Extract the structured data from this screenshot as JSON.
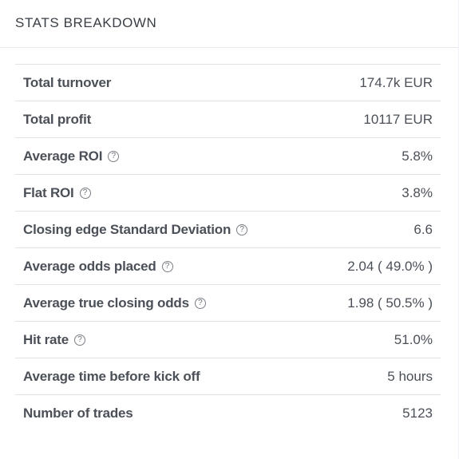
{
  "card": {
    "title": "STATS BREAKDOWN"
  },
  "help_icon_glyph": "?",
  "stats": [
    {
      "label": "Total turnover",
      "value": "174.7k EUR",
      "help": false
    },
    {
      "label": "Total profit",
      "value": "10117 EUR",
      "help": false
    },
    {
      "label": "Average ROI",
      "value": "5.8%",
      "help": true
    },
    {
      "label": "Flat ROI",
      "value": "3.8%",
      "help": true
    },
    {
      "label": "Closing edge Standard Deviation",
      "value": "6.6",
      "help": true
    },
    {
      "label": "Average odds placed",
      "value": "2.04 ( 49.0% )",
      "help": true
    },
    {
      "label": "Average true closing odds",
      "value": "1.98 ( 50.5% )",
      "help": true
    },
    {
      "label": "Hit rate",
      "value": "51.0%",
      "help": true
    },
    {
      "label": "Average time before kick off",
      "value": "5 hours",
      "help": false
    },
    {
      "label": "Number of trades",
      "value": "5123",
      "help": false
    }
  ]
}
